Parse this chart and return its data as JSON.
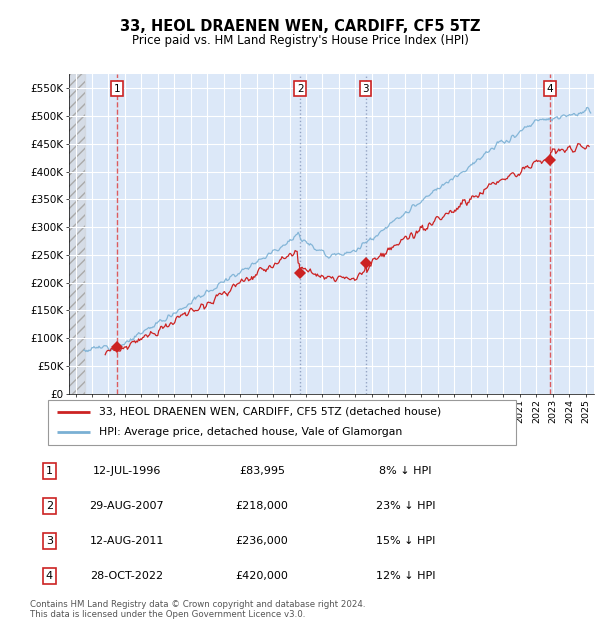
{
  "title": "33, HEOL DRAENEN WEN, CARDIFF, CF5 5TZ",
  "subtitle": "Price paid vs. HM Land Registry's House Price Index (HPI)",
  "ylim": [
    0,
    575000
  ],
  "yticks": [
    0,
    50000,
    100000,
    150000,
    200000,
    250000,
    300000,
    350000,
    400000,
    450000,
    500000,
    550000
  ],
  "ytick_labels": [
    "£0",
    "£50K",
    "£100K",
    "£150K",
    "£200K",
    "£250K",
    "£300K",
    "£350K",
    "£400K",
    "£450K",
    "£500K",
    "£550K"
  ],
  "xlim_start": 1993.6,
  "xlim_end": 2025.5,
  "hatch_end": 1994.6,
  "plot_bg": "#dce8f8",
  "grid_color": "#ffffff",
  "transactions": [
    {
      "num": 1,
      "date": "12-JUL-1996",
      "year": 1996.53,
      "price": 83995,
      "pct": "8%",
      "label": "1",
      "vline_color": "#dd4444",
      "vline_style": "--"
    },
    {
      "num": 2,
      "date": "29-AUG-2007",
      "year": 2007.66,
      "price": 218000,
      "pct": "23%",
      "label": "2",
      "vline_color": "#8899bb",
      "vline_style": ":"
    },
    {
      "num": 3,
      "date": "12-AUG-2011",
      "year": 2011.62,
      "price": 236000,
      "pct": "15%",
      "label": "3",
      "vline_color": "#8899bb",
      "vline_style": ":"
    },
    {
      "num": 4,
      "date": "28-OCT-2022",
      "year": 2022.83,
      "price": 420000,
      "pct": "12%",
      "label": "4",
      "vline_color": "#dd4444",
      "vline_style": "--"
    }
  ],
  "legend_line1": "33, HEOL DRAENEN WEN, CARDIFF, CF5 5TZ (detached house)",
  "legend_line2": "HPI: Average price, detached house, Vale of Glamorgan",
  "footer": "Contains HM Land Registry data © Crown copyright and database right 2024.\nThis data is licensed under the Open Government Licence v3.0.",
  "red_line_color": "#cc2222",
  "blue_line_color": "#7ab0d4",
  "marker_color": "#cc2222",
  "box_edge_color": "#cc2222"
}
